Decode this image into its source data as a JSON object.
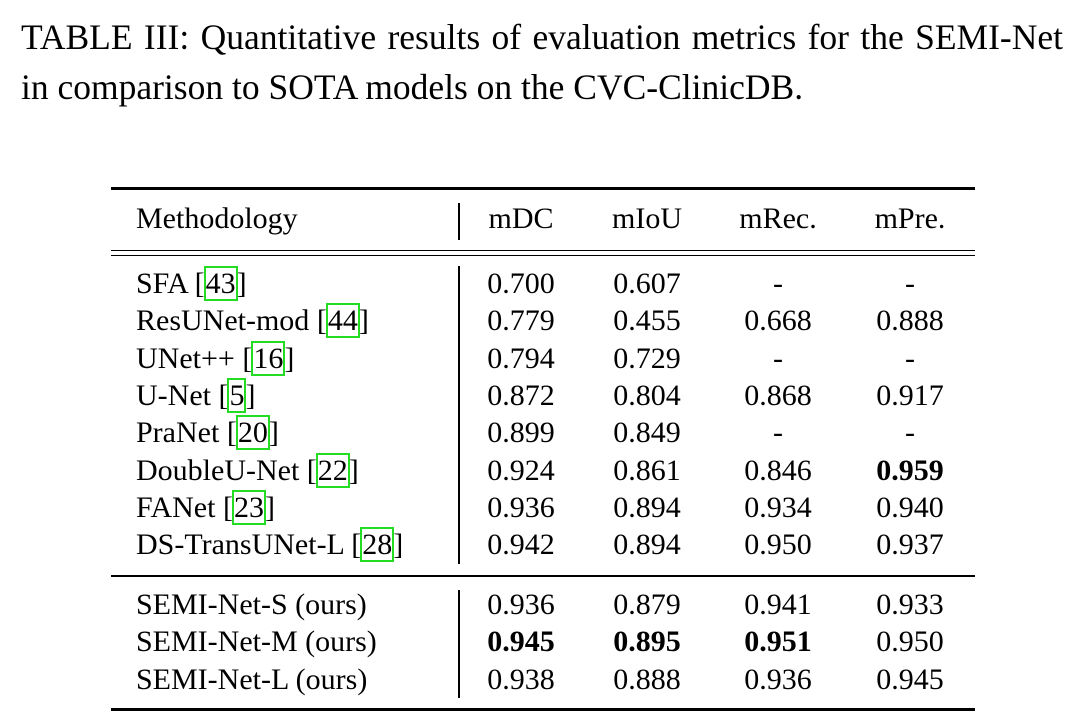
{
  "caption": "TABLE III: Quantitative results of evaluation metrics for the SEMI-Net in comparison to SOTA models on the CVC-ClinicDB.",
  "headers": [
    "Methodology",
    "mDC",
    "mIoU",
    "mRec.",
    "mPre."
  ],
  "groups": [
    {
      "rows": [
        {
          "name": "SFA",
          "ref": "43",
          "values": [
            "0.700",
            "0.607",
            "-",
            "-"
          ],
          "bold": [
            false,
            false,
            false,
            false
          ]
        },
        {
          "name": "ResUNet-mod",
          "ref": "44",
          "values": [
            "0.779",
            "0.455",
            "0.668",
            "0.888"
          ],
          "bold": [
            false,
            false,
            false,
            false
          ]
        },
        {
          "name": "UNet++",
          "ref": "16",
          "values": [
            "0.794",
            "0.729",
            "-",
            "-"
          ],
          "bold": [
            false,
            false,
            false,
            false
          ]
        },
        {
          "name": "U-Net",
          "ref": "5",
          "values": [
            "0.872",
            "0.804",
            "0.868",
            "0.917"
          ],
          "bold": [
            false,
            false,
            false,
            false
          ]
        },
        {
          "name": "PraNet",
          "ref": "20",
          "values": [
            "0.899",
            "0.849",
            "-",
            "-"
          ],
          "bold": [
            false,
            false,
            false,
            false
          ]
        },
        {
          "name": "DoubleU-Net",
          "ref": "22",
          "values": [
            "0.924",
            "0.861",
            "0.846",
            "0.959"
          ],
          "bold": [
            false,
            false,
            false,
            true
          ]
        },
        {
          "name": "FANet",
          "ref": "23",
          "values": [
            "0.936",
            "0.894",
            "0.934",
            "0.940"
          ],
          "bold": [
            false,
            false,
            false,
            false
          ]
        },
        {
          "name": "DS-TransUNet-L",
          "ref": "28",
          "values": [
            "0.942",
            "0.894",
            "0.950",
            "0.937"
          ],
          "bold": [
            false,
            false,
            false,
            false
          ]
        }
      ]
    },
    {
      "rows": [
        {
          "name": "SEMI-Net-S (ours)",
          "ref": "",
          "values": [
            "0.936",
            "0.879",
            "0.941",
            "0.933"
          ],
          "bold": [
            false,
            false,
            false,
            false
          ]
        },
        {
          "name": "SEMI-Net-M (ours)",
          "ref": "",
          "values": [
            "0.945",
            "0.895",
            "0.951",
            "0.950"
          ],
          "bold": [
            true,
            true,
            true,
            false
          ]
        },
        {
          "name": "SEMI-Net-L (ours)",
          "ref": "",
          "values": [
            "0.938",
            "0.888",
            "0.936",
            "0.945"
          ],
          "bold": [
            false,
            false,
            false,
            false
          ]
        }
      ]
    }
  ]
}
